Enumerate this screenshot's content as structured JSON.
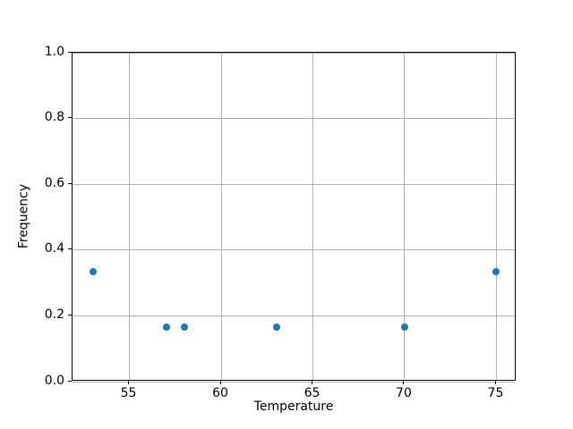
{
  "chart_data": {
    "type": "scatter",
    "title": "",
    "xlabel": "Temperature",
    "ylabel": "Frequency",
    "x": [
      53,
      57,
      58,
      63,
      70,
      75
    ],
    "y": [
      0.333,
      0.167,
      0.167,
      0.167,
      0.167,
      0.333
    ],
    "xlim": [
      51.9,
      76.1
    ],
    "ylim": [
      0.0,
      1.0
    ],
    "x_ticks": [
      {
        "value": 55,
        "label": "55"
      },
      {
        "value": 60,
        "label": "60"
      },
      {
        "value": 65,
        "label": "65"
      },
      {
        "value": 70,
        "label": "70"
      },
      {
        "value": 75,
        "label": "75"
      }
    ],
    "y_ticks": [
      {
        "value": 0.0,
        "label": "0.0"
      },
      {
        "value": 0.2,
        "label": "0.2"
      },
      {
        "value": 0.4,
        "label": "0.4"
      },
      {
        "value": 0.6,
        "label": "0.6"
      },
      {
        "value": 0.8,
        "label": "0.8"
      },
      {
        "value": 1.0,
        "label": "1.0"
      }
    ],
    "grid": true,
    "legend": null,
    "marker_color": "#1f77b4",
    "grid_color": "#b0b0b0",
    "spine_color": "#000000",
    "background_color": "#ffffff"
  }
}
